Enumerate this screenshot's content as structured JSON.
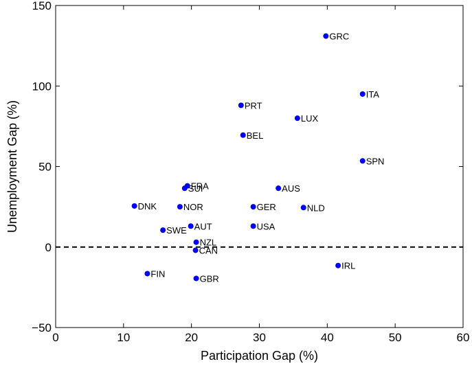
{
  "chart_data": {
    "type": "scatter",
    "title": "",
    "xlabel": "Participation Gap (%)",
    "ylabel": "Unemployment Gap (%)",
    "xlim": [
      0,
      60
    ],
    "ylim": [
      -50,
      150
    ],
    "xticks": [
      0,
      10,
      20,
      30,
      40,
      50,
      60
    ],
    "yticks": [
      -50,
      0,
      50,
      100,
      150
    ],
    "grid": false,
    "reference_line": {
      "y": 0,
      "style": "dashed"
    },
    "marker_color": "#0000ff",
    "points": [
      {
        "label": "GRC",
        "x": 39.8,
        "y": 131
      },
      {
        "label": "ITA",
        "x": 45.2,
        "y": 95
      },
      {
        "label": "PRT",
        "x": 27.3,
        "y": 88
      },
      {
        "label": "LUX",
        "x": 35.6,
        "y": 80
      },
      {
        "label": "BEL",
        "x": 27.6,
        "y": 69.5
      },
      {
        "label": "SPN",
        "x": 45.2,
        "y": 53.5
      },
      {
        "label": "FRA",
        "x": 19.4,
        "y": 38
      },
      {
        "label": "SUI",
        "x": 19.0,
        "y": 36.5
      },
      {
        "label": "AUS",
        "x": 32.8,
        "y": 36.5
      },
      {
        "label": "DNK",
        "x": 11.6,
        "y": 25.5
      },
      {
        "label": "NOR",
        "x": 18.3,
        "y": 25
      },
      {
        "label": "GER",
        "x": 29.1,
        "y": 25
      },
      {
        "label": "NLD",
        "x": 36.5,
        "y": 24.5
      },
      {
        "label": "AUT",
        "x": 19.9,
        "y": 13
      },
      {
        "label": "USA",
        "x": 29.1,
        "y": 13
      },
      {
        "label": "SWE",
        "x": 15.8,
        "y": 10.5
      },
      {
        "label": "NZL",
        "x": 20.7,
        "y": 3
      },
      {
        "label": "CAN",
        "x": 20.6,
        "y": -2
      },
      {
        "label": "IRL",
        "x": 41.6,
        "y": -11.5
      },
      {
        "label": "FIN",
        "x": 13.5,
        "y": -16.5
      },
      {
        "label": "GBR",
        "x": 20.7,
        "y": -19.5
      }
    ]
  }
}
